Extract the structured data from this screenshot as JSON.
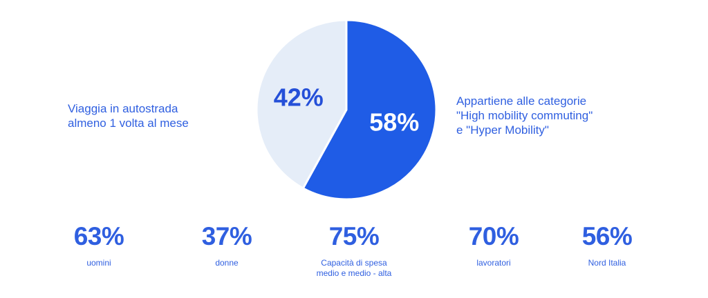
{
  "chart_data": {
    "type": "pie",
    "slices": [
      {
        "label": "58%",
        "value": 58,
        "color": "#1f5ce6"
      },
      {
        "label": "42%",
        "value": 42,
        "color": "#e5edf8"
      }
    ],
    "slice_label_colors": [
      "#ffffff",
      "#2550d8"
    ],
    "left_annotation": "Viaggia in autostrada\nalmeno 1 volta al mese",
    "right_annotation": "Appartiene alle categorie\n\"High mobility commuting\"\ne \"Hyper Mobility\""
  },
  "stats": [
    {
      "value": "63%",
      "label": "uomini"
    },
    {
      "value": "37%",
      "label": "donne"
    },
    {
      "value": "75%",
      "label": "Capacità di spesa\nmedio e medio - alta"
    },
    {
      "value": "70%",
      "label": "lavoratori"
    },
    {
      "value": "56%",
      "label": "Nord Italia"
    }
  ],
  "colors": {
    "accent": "#2f5fe0"
  }
}
